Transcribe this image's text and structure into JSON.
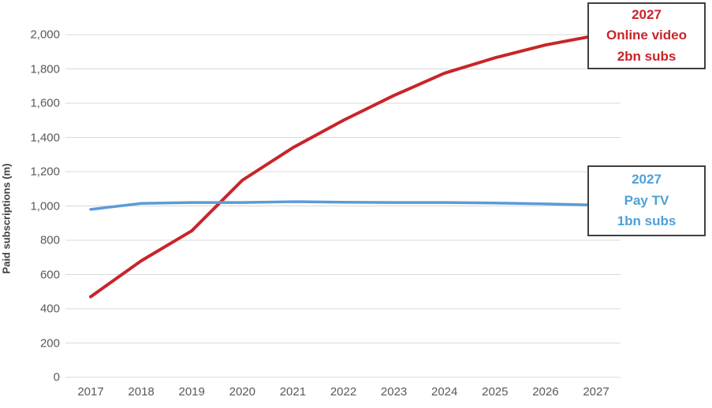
{
  "chart_data": {
    "type": "line",
    "title": "",
    "xlabel": "",
    "ylabel": "Paid subscriptions (m)",
    "x": [
      2017,
      2018,
      2019,
      2020,
      2021,
      2022,
      2023,
      2024,
      2025,
      2026,
      2027
    ],
    "series": [
      {
        "name": "Online video",
        "color": "#c9242a",
        "stroke_width": 4,
        "values": [
          470,
          680,
          855,
          1150,
          1340,
          1500,
          1645,
          1775,
          1865,
          1940,
          1995
        ]
      },
      {
        "name": "Pay TV",
        "color": "#5b9bd5",
        "stroke_width": 3.5,
        "values": [
          980,
          1015,
          1020,
          1020,
          1025,
          1022,
          1020,
          1020,
          1017,
          1012,
          1005
        ]
      }
    ],
    "ylim": [
      0,
      2000
    ],
    "y_tick_values": [
      0,
      200,
      400,
      600,
      800,
      1000,
      1200,
      1400,
      1600,
      1800,
      2000
    ],
    "y_tick_labels": [
      "0",
      "200",
      "400",
      "600",
      "800",
      "1,000",
      "1,200",
      "1,400",
      "1,600",
      "1,800",
      "2,000"
    ],
    "x_tick_labels": [
      "2017",
      "2018",
      "2019",
      "2020",
      "2021",
      "2022",
      "2023",
      "2024",
      "2025",
      "2026",
      "2027"
    ],
    "grid": true,
    "gridline_color": "#d9d9d9",
    "tick_label_color": "#595959",
    "legend_position": "none"
  },
  "annotations": {
    "online_video": {
      "lines": [
        "2027",
        "Online video",
        "2bn subs"
      ],
      "color": "#c9242a"
    },
    "pay_tv": {
      "lines": [
        "2027",
        "Pay TV",
        "1bn subs"
      ],
      "color": "#4da0d8"
    }
  }
}
